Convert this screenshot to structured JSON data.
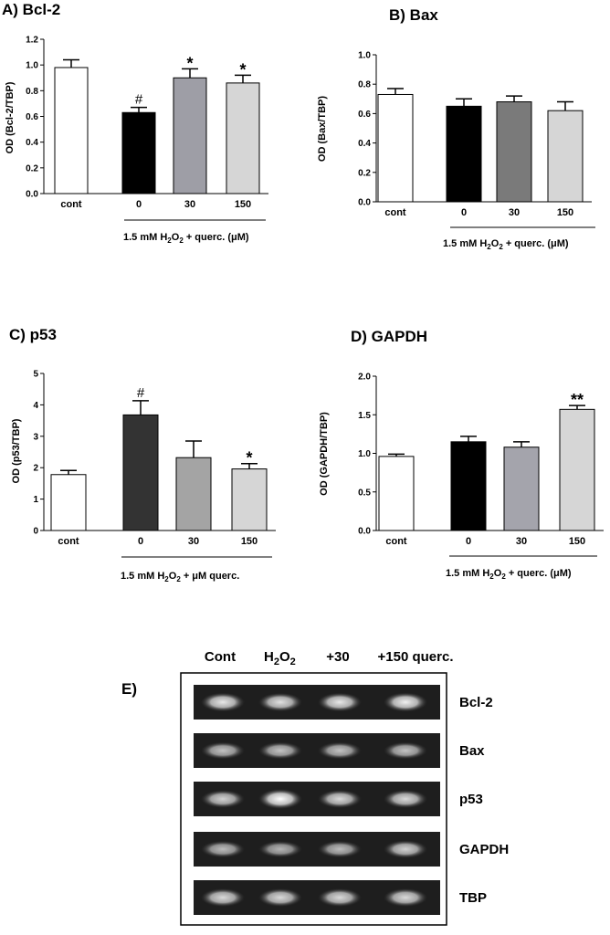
{
  "charts": {
    "A": {
      "panel_label": "A) Bcl-2",
      "ylabel": "OD (Bcl-2/TBP)",
      "treatment_main": "1.5 mM H",
      "treatment_sub": "2",
      "treatment_o": "O",
      "treatment_sub2": "2",
      "treatment_tail": " + querc. (μM)"
    },
    "B": {
      "panel_label": "B) Bax",
      "ylabel": "OD (Bax/TBP)",
      "treatment_main": "1.5 mM H",
      "treatment_sub": "2",
      "treatment_o": "O",
      "treatment_sub2": "2",
      "treatment_tail": " + querc. (μM)"
    },
    "C": {
      "panel_label": "C) p53",
      "ylabel": "OD (p53/TBP)",
      "treatment_main": "1.5 mM H",
      "treatment_sub": "2",
      "treatment_o": "O",
      "treatment_sub2": "2",
      "treatment_tail": " + μM querc."
    },
    "D": {
      "panel_label": "D) GAPDH",
      "ylabel": "OD (GAPDH/TBP)",
      "treatment_main": "1.5 mM H",
      "treatment_sub": "2",
      "treatment_o": "O",
      "treatment_sub2": "2",
      "treatment_tail": " + querc. (μM)"
    }
  },
  "gel": {
    "panel_label": "E)",
    "lanes": [
      "Cont",
      "H2O2",
      "+30",
      "+150 querc."
    ],
    "lane_h2o2_main": "H",
    "lane_h2o2_sub": "2",
    "lane_h2o2_o": "O",
    "lane_h2o2_sub2": "2",
    "bands": [
      "Bcl-2",
      "Bax",
      "p53",
      "GAPDH",
      "TBP"
    ],
    "band_intensity": [
      [
        0.85,
        0.8,
        0.85,
        0.9
      ],
      [
        0.6,
        0.6,
        0.6,
        0.6
      ],
      [
        0.7,
        1.0,
        0.75,
        0.75
      ],
      [
        0.55,
        0.5,
        0.55,
        0.7
      ],
      [
        0.75,
        0.75,
        0.75,
        0.75
      ]
    ]
  },
  "chart_data": [
    {
      "type": "bar",
      "title": "A) Bcl-2",
      "ylabel": "OD (Bcl-2/TBP)",
      "xlabel": "1.5 mM H2O2 + querc. (μM)",
      "categories": [
        "cont",
        "0",
        "30",
        "150"
      ],
      "values": [
        0.98,
        0.63,
        0.9,
        0.86
      ],
      "errors": [
        0.06,
        0.04,
        0.07,
        0.06
      ],
      "annotations": [
        "",
        "#",
        "*",
        "*"
      ],
      "colors": [
        "#ffffff",
        "#000000",
        "#9e9ea6",
        "#d6d6d6"
      ],
      "ylim": [
        0,
        1.2
      ],
      "yticks": [
        "0.0",
        "0.2",
        "0.4",
        "0.6",
        "0.8",
        "1.0",
        "1.2"
      ]
    },
    {
      "type": "bar",
      "title": "B) Bax",
      "ylabel": "OD (Bax/TBP)",
      "xlabel": "1.5 mM H2O2 + querc. (μM)",
      "categories": [
        "cont",
        "0",
        "30",
        "150"
      ],
      "values": [
        0.73,
        0.65,
        0.68,
        0.62
      ],
      "errors": [
        0.04,
        0.05,
        0.04,
        0.06
      ],
      "annotations": [
        "",
        "",
        "",
        ""
      ],
      "colors": [
        "#ffffff",
        "#000000",
        "#7a7a7a",
        "#d6d6d6"
      ],
      "ylim": [
        0,
        1.0
      ],
      "yticks": [
        "0.0",
        "0.2",
        "0.4",
        "0.6",
        "0.8",
        "1.0"
      ]
    },
    {
      "type": "bar",
      "title": "C) p53",
      "ylabel": "OD (p53/TBP)",
      "xlabel": "1.5 mM H2O2 + μM querc.",
      "categories": [
        "cont",
        "0",
        "30",
        "150"
      ],
      "values": [
        1.78,
        3.68,
        2.32,
        1.96
      ],
      "errors": [
        0.13,
        0.45,
        0.53,
        0.17
      ],
      "annotations": [
        "",
        "#",
        "",
        "*"
      ],
      "colors": [
        "#ffffff",
        "#333333",
        "#a4a4a4",
        "#d6d6d6"
      ],
      "ylim": [
        0,
        5
      ],
      "yticks": [
        "0",
        "1",
        "2",
        "3",
        "4",
        "5"
      ]
    },
    {
      "type": "bar",
      "title": "D) GAPDH",
      "ylabel": "OD (GAPDH/TBP)",
      "xlabel": "1.5 mM H2O2 + querc. (μM)",
      "categories": [
        "cont",
        "0",
        "30",
        "150"
      ],
      "values": [
        0.96,
        1.15,
        1.08,
        1.57
      ],
      "errors": [
        0.03,
        0.07,
        0.07,
        0.05
      ],
      "annotations": [
        "",
        "",
        "",
        "**"
      ],
      "colors": [
        "#ffffff",
        "#000000",
        "#a4a4ac",
        "#d6d6d6"
      ],
      "ylim": [
        0,
        2.0
      ],
      "yticks": [
        "0.0",
        "0.5",
        "1.0",
        "1.5",
        "2.0"
      ]
    }
  ]
}
